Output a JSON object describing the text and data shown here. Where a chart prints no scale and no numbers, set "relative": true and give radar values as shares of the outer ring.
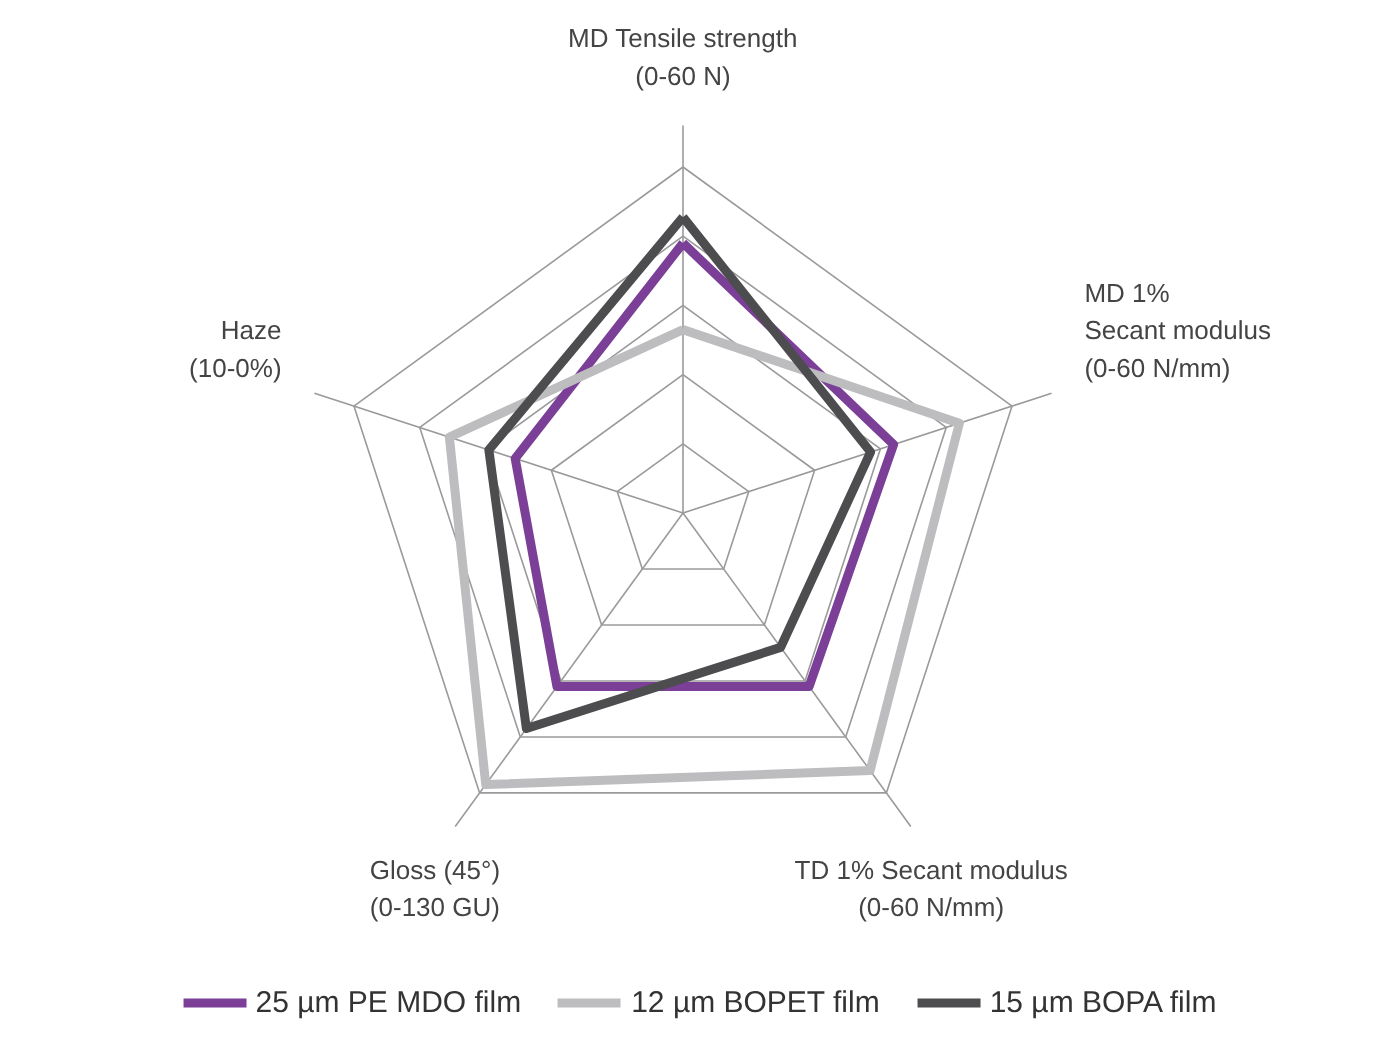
{
  "chart_data": {
    "type": "radar",
    "relative": true,
    "legend": "bottom",
    "grid": true,
    "marker": "none",
    "line_style": "solid",
    "categories": [
      "MD Tensile strength\n(0-60 N)",
      "MD 1%\nSecant modulus\n(0-60 N/mm)",
      "TD 1% Secant modulus\n(0-60 N/mm)",
      "Gloss (45°)\n(0-130 GU)",
      "Haze\n(10-0%)"
    ],
    "series": [
      {
        "name": "25 µm PE MDO film",
        "color": "#7b3f98",
        "values": [
          0.78,
          0.64,
          0.62,
          0.62,
          0.51
        ]
      },
      {
        "name": "12 µm BOPET film",
        "color": "#bdbdc0",
        "values": [
          0.53,
          0.84,
          0.92,
          0.97,
          0.71
        ]
      },
      {
        "name": "15 µm BOPA film",
        "color": "#4d4d4f",
        "values": [
          0.855,
          0.57,
          0.48,
          0.77,
          0.59
        ]
      }
    ]
  }
}
